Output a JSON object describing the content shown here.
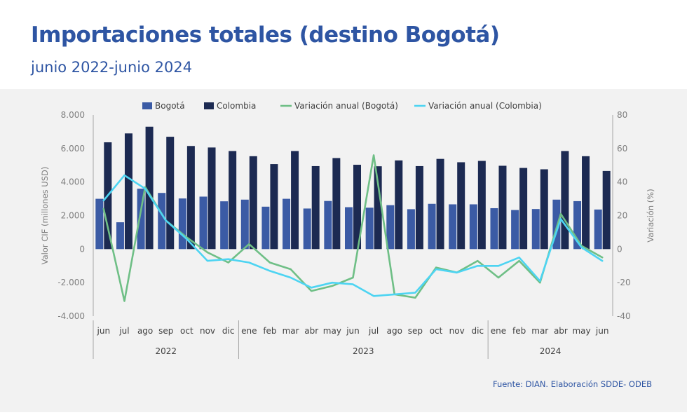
{
  "header": {
    "title": "Importaciones totales (destino Bogotá)",
    "subtitle": "junio 2022-junio 2024"
  },
  "footer": {
    "source": "Fuente: DIAN. Elaboración SDDE- ODEB"
  },
  "colors": {
    "title": "#2e55a3",
    "panel": "#f2f2f2",
    "bogota": "#3b5ba5",
    "colombia": "#1c2a52",
    "var_bogota": "#6fbf86",
    "var_colombia": "#4dd4f2",
    "text": "#404040",
    "axis_text": "#7f7f7f",
    "axis_line": "#a6a6a6"
  },
  "chart_data": {
    "type": "bar",
    "title": "",
    "categories": [
      "jun",
      "jul",
      "ago",
      "sep",
      "oct",
      "nov",
      "dic",
      "ene",
      "feb",
      "mar",
      "abr",
      "may",
      "jun",
      "jul",
      "ago",
      "sep",
      "oct",
      "nov",
      "dic",
      "ene",
      "feb",
      "mar",
      "abr",
      "may",
      "jun"
    ],
    "year_groups": [
      {
        "label": "2022",
        "start": 0,
        "end": 6
      },
      {
        "label": "2023",
        "start": 7,
        "end": 18
      },
      {
        "label": "2024",
        "start": 19,
        "end": 24
      }
    ],
    "series": [
      {
        "name": "Bogotá",
        "type": "bar",
        "axis": "left",
        "values": [
          3000,
          1600,
          3600,
          3350,
          3020,
          3130,
          2850,
          2950,
          2530,
          3000,
          2420,
          2870,
          2500,
          2470,
          2620,
          2380,
          2700,
          2670,
          2670,
          2440,
          2330,
          2390,
          2950,
          2860,
          2360
        ]
      },
      {
        "name": "Colombia",
        "type": "bar",
        "axis": "left",
        "values": [
          6370,
          6900,
          7300,
          6700,
          6150,
          6060,
          5850,
          5540,
          5070,
          5850,
          4950,
          5430,
          5030,
          4940,
          5290,
          4950,
          5380,
          5180,
          5260,
          4970,
          4840,
          4760,
          5850,
          5540,
          4660
        ]
      },
      {
        "name": "Variación anual (Bogotá)",
        "type": "line",
        "axis": "right",
        "values": [
          24,
          -31,
          37,
          17,
          7,
          -2,
          -8,
          3,
          -8,
          -12,
          -25,
          -22,
          -17,
          56,
          -27,
          -29,
          -11,
          -14,
          -7,
          -17,
          -7,
          -20,
          21,
          2,
          -5
        ]
      },
      {
        "name": "Variación anual (Colombia)",
        "type": "line",
        "axis": "right",
        "values": [
          29,
          44,
          36,
          17,
          6,
          -7,
          -6,
          -8,
          -13,
          -17,
          -23,
          -20,
          -21,
          -28,
          -27,
          -26,
          -12,
          -14,
          -10,
          -10,
          -5,
          -19,
          18,
          1,
          -7
        ]
      }
    ],
    "ylabel": "Valor CIF (millones USD)",
    "ylim": [
      -4000,
      8000
    ],
    "yticks": [
      -4000,
      -2000,
      0,
      2000,
      4000,
      6000,
      8000
    ],
    "ytick_labels": [
      "-4.000",
      "-2.000",
      "0",
      "2.000",
      "4.000",
      "6.000",
      "8.000"
    ],
    "y2label": "Variación (%)",
    "y2lim": [
      -40,
      80
    ],
    "y2ticks": [
      -40,
      -20,
      0,
      20,
      40,
      60,
      80
    ],
    "y2tick_labels": [
      "-40",
      "-20",
      "0",
      "20",
      "40",
      "60",
      "80"
    ],
    "legend_position": "top"
  }
}
